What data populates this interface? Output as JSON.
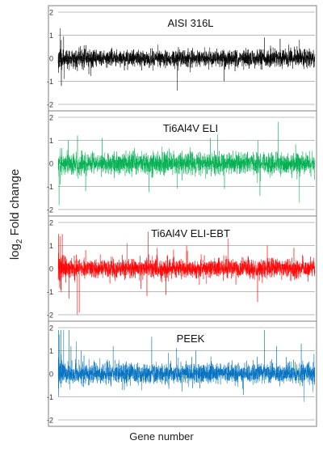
{
  "chart_data": [
    {
      "type": "line",
      "title": "AISI 316L",
      "color": "#000000",
      "ylim": [
        -2,
        2
      ],
      "yticks": [
        -2,
        -1,
        0,
        1,
        2
      ],
      "grid": true,
      "series": [
        {
          "n_genes": 2800,
          "noise_sd": 0.18,
          "spikes": [
            [
              20,
              1.3
            ],
            [
              35,
              -1.2
            ],
            [
              60,
              0.95
            ],
            [
              1300,
              -1.4
            ],
            [
              1810,
              -1.0
            ],
            [
              2250,
              0.9
            ],
            [
              2420,
              0.85
            ],
            [
              2630,
              0.8
            ]
          ]
        }
      ]
    },
    {
      "type": "line",
      "title": "Ti6Al4V ELI",
      "color": "#00b050",
      "ylim": [
        -2,
        2
      ],
      "yticks": [
        -2,
        -1,
        0,
        1,
        2
      ],
      "grid": true,
      "series": [
        {
          "n_genes": 2800,
          "noise_sd": 0.22,
          "spikes": [
            [
              10,
              -1.8
            ],
            [
              110,
              1.0
            ],
            [
              300,
              -1.2
            ],
            [
              480,
              1.1
            ],
            [
              1300,
              -1.1
            ],
            [
              1660,
              1.1
            ],
            [
              2180,
              1.0
            ],
            [
              2200,
              -1.4
            ],
            [
              2400,
              1.8
            ],
            [
              2630,
              -1.7
            ]
          ]
        }
      ]
    },
    {
      "type": "line",
      "title": "Ti6Al4V ELI-EBT",
      "color": "#ff0000",
      "ylim": [
        -2,
        2
      ],
      "yticks": [
        -2,
        -1,
        0,
        1,
        2
      ],
      "grid": true,
      "series": [
        {
          "n_genes": 2800,
          "noise_sd": 0.2,
          "spikes": [
            [
              5,
              1.5
            ],
            [
              20,
              1.4
            ],
            [
              45,
              1.5
            ],
            [
              120,
              -1.3
            ],
            [
              210,
              -2.0
            ],
            [
              230,
              -1.9
            ],
            [
              300,
              0.8
            ],
            [
              750,
              1.1
            ],
            [
              980,
              1.6
            ],
            [
              1080,
              0.9
            ],
            [
              1400,
              1.0
            ],
            [
              1850,
              1.3
            ],
            [
              2280,
              1.0
            ],
            [
              2570,
              0.9
            ]
          ]
        }
      ]
    },
    {
      "type": "line",
      "title": "PEEK",
      "color": "#0070c0",
      "ylim": [
        -2,
        2
      ],
      "yticks": [
        -2,
        -1,
        0,
        1,
        2
      ],
      "grid": true,
      "series": [
        {
          "n_genes": 2800,
          "noise_sd": 0.22,
          "spikes": [
            [
              5,
              1.9
            ],
            [
              15,
              1.7
            ],
            [
              30,
              1.9
            ],
            [
              60,
              1.9
            ],
            [
              120,
              1.9
            ],
            [
              140,
              1.2
            ],
            [
              200,
              1.4
            ],
            [
              250,
              1.0
            ],
            [
              600,
              1.2
            ],
            [
              1020,
              1.6
            ],
            [
              1200,
              0.9
            ],
            [
              1500,
              1.0
            ],
            [
              2250,
              1.9
            ],
            [
              2380,
              1.2
            ],
            [
              2650,
              1.3
            ]
          ]
        }
      ]
    }
  ],
  "axes": {
    "ylabel_main": "log",
    "ylabel_sub": "2",
    "ylabel_rest": " Fold change",
    "xlabel": "Gene number"
  }
}
